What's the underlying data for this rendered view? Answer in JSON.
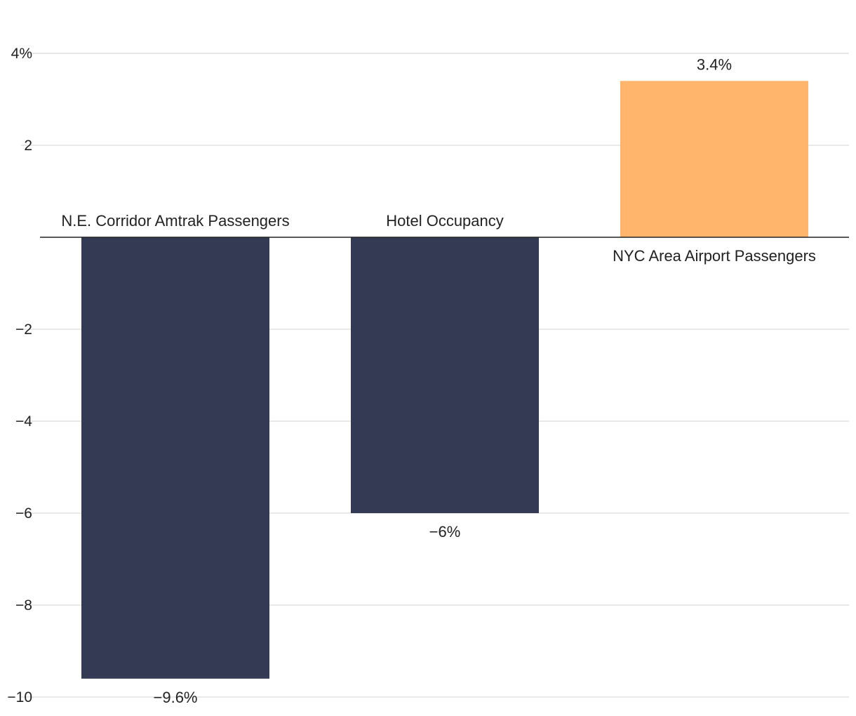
{
  "chart_data": {
    "type": "bar",
    "title": "",
    "xlabel": "",
    "ylabel": "",
    "categories": [
      "N.E. Corridor Amtrak Passengers",
      "Hotel Occupancy",
      "NYC Area Airport Passengers"
    ],
    "values": [
      -9.6,
      -6,
      3.4
    ],
    "value_labels": [
      "−9.6%",
      "−6%",
      "3.4%"
    ],
    "ylim": [
      -10,
      4
    ],
    "yticks": [
      4,
      2,
      -2,
      -4,
      -6,
      -8,
      -10
    ],
    "ytick_labels": [
      "4%",
      "2",
      "−2",
      "−4",
      "−6",
      "−8",
      "−10"
    ],
    "grid": true,
    "legend": "none"
  },
  "colors": {
    "negative": "#343a54",
    "positive": "#ffb56b",
    "grid": "#e2e2e2",
    "zero_line": "#222222",
    "text": "#222222"
  }
}
